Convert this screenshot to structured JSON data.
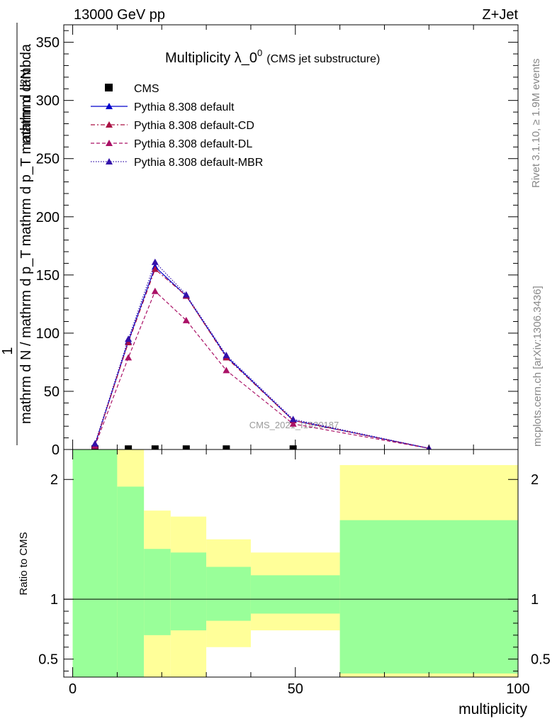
{
  "header": {
    "left": "13000 GeV pp",
    "right": "Z+Jet"
  },
  "side_labels": {
    "rivet": "Rivet 3.1.10, ≥ 1.9M events",
    "mcplots": "mcplots.cern.ch [arXiv:1306.3436]"
  },
  "chart_data": [
    {
      "type": "line",
      "title": "Multiplicity λ_0",
      "title_sup": "0",
      "subtitle": "(CMS jet substructure)",
      "watermark": "CMS_2021_I1920187",
      "xlabel": "",
      "ylabel": {
        "lead": "1",
        "numerator": "mathrm d²N",
        "denominator": "mathrm d N / mathrm d p_T mathrm d p_T mathrm d lambda"
      },
      "xlim": [
        -2,
        100
      ],
      "ylim": [
        0,
        365
      ],
      "x_ticks": [
        0,
        50,
        100
      ],
      "y_ticks": [
        0,
        50,
        100,
        150,
        200,
        250,
        300,
        350
      ],
      "y_tick_labels": [
        "0",
        "50",
        "100",
        "150",
        "200",
        "250",
        "300",
        "350"
      ],
      "legend_position": "top-left",
      "series": [
        {
          "name": "CMS",
          "color": "#000000",
          "marker": "square",
          "x": [
            5,
            12.5,
            18.5,
            25.5,
            34.5,
            49.5
          ],
          "y": [
            0.5,
            0.5,
            0.5,
            0.5,
            0.5,
            0.5
          ]
        },
        {
          "name": "Pythia 8.308 default",
          "color": "#0000cc",
          "dash": "solid",
          "marker": "triangle",
          "x": [
            5,
            12.5,
            18.5,
            25.5,
            34.5,
            49.5,
            80
          ],
          "y": [
            4,
            93,
            157,
            132,
            80,
            25,
            1
          ]
        },
        {
          "name": "Pythia 8.308 default-CD",
          "color": "#aa1144",
          "dash": "dash-dot",
          "marker": "triangle",
          "x": [
            5,
            12.5,
            18.5,
            25.5,
            34.5,
            49.5,
            80
          ],
          "y": [
            4,
            92,
            155,
            132,
            79,
            25,
            1
          ]
        },
        {
          "name": "Pythia 8.308 default-DL",
          "color": "#aa1166",
          "dash": "dash",
          "marker": "triangle",
          "x": [
            5,
            12.5,
            18.5,
            25.5,
            34.5,
            49.5,
            80
          ],
          "y": [
            3,
            79,
            136,
            111,
            68,
            22,
            1
          ]
        },
        {
          "name": "Pythia 8.308 default-MBR",
          "color": "#3311aa",
          "dash": "dot",
          "marker": "triangle",
          "x": [
            5,
            12.5,
            18.5,
            25.5,
            34.5,
            49.5,
            80
          ],
          "y": [
            5,
            95,
            161,
            133,
            81,
            26,
            1
          ]
        }
      ]
    },
    {
      "type": "area",
      "ylabel": "Ratio to CMS",
      "xlabel": "multiplicity",
      "xlim": [
        -2,
        100
      ],
      "ylim": [
        0.35,
        2.25
      ],
      "x_ticks": [
        0,
        50,
        100
      ],
      "x_tick_labels": [
        "0",
        "50",
        "100"
      ],
      "y_ticks": [
        0.5,
        1,
        2
      ],
      "y_tick_labels": [
        "0.5",
        "1",
        "2"
      ],
      "reference_line": 1,
      "bands": {
        "outer_color": "#ffff99",
        "inner_color": "#99ff99",
        "bins": [
          {
            "x0": 0,
            "x1": 10,
            "outer": [
              0.3,
              2.4
            ],
            "inner": [
              0.3,
              2.4
            ]
          },
          {
            "x0": 10,
            "x1": 16,
            "outer": [
              0.3,
              2.4
            ],
            "inner": [
              0.3,
              1.94
            ]
          },
          {
            "x0": 16,
            "x1": 22,
            "outer": [
              0.3,
              1.74
            ],
            "inner": [
              0.7,
              1.42
            ]
          },
          {
            "x0": 22,
            "x1": 30,
            "outer": [
              0.3,
              1.69
            ],
            "inner": [
              0.74,
              1.39
            ]
          },
          {
            "x0": 30,
            "x1": 40,
            "outer": [
              0.6,
              1.5
            ],
            "inner": [
              0.82,
              1.27
            ]
          },
          {
            "x0": 40,
            "x1": 60,
            "outer": [
              0.74,
              1.39
            ],
            "inner": [
              0.88,
              1.2
            ]
          },
          {
            "x0": 60,
            "x1": 100,
            "outer": [
              0.35,
              2.12
            ],
            "inner": [
              0.38,
              1.66
            ]
          }
        ]
      }
    }
  ]
}
